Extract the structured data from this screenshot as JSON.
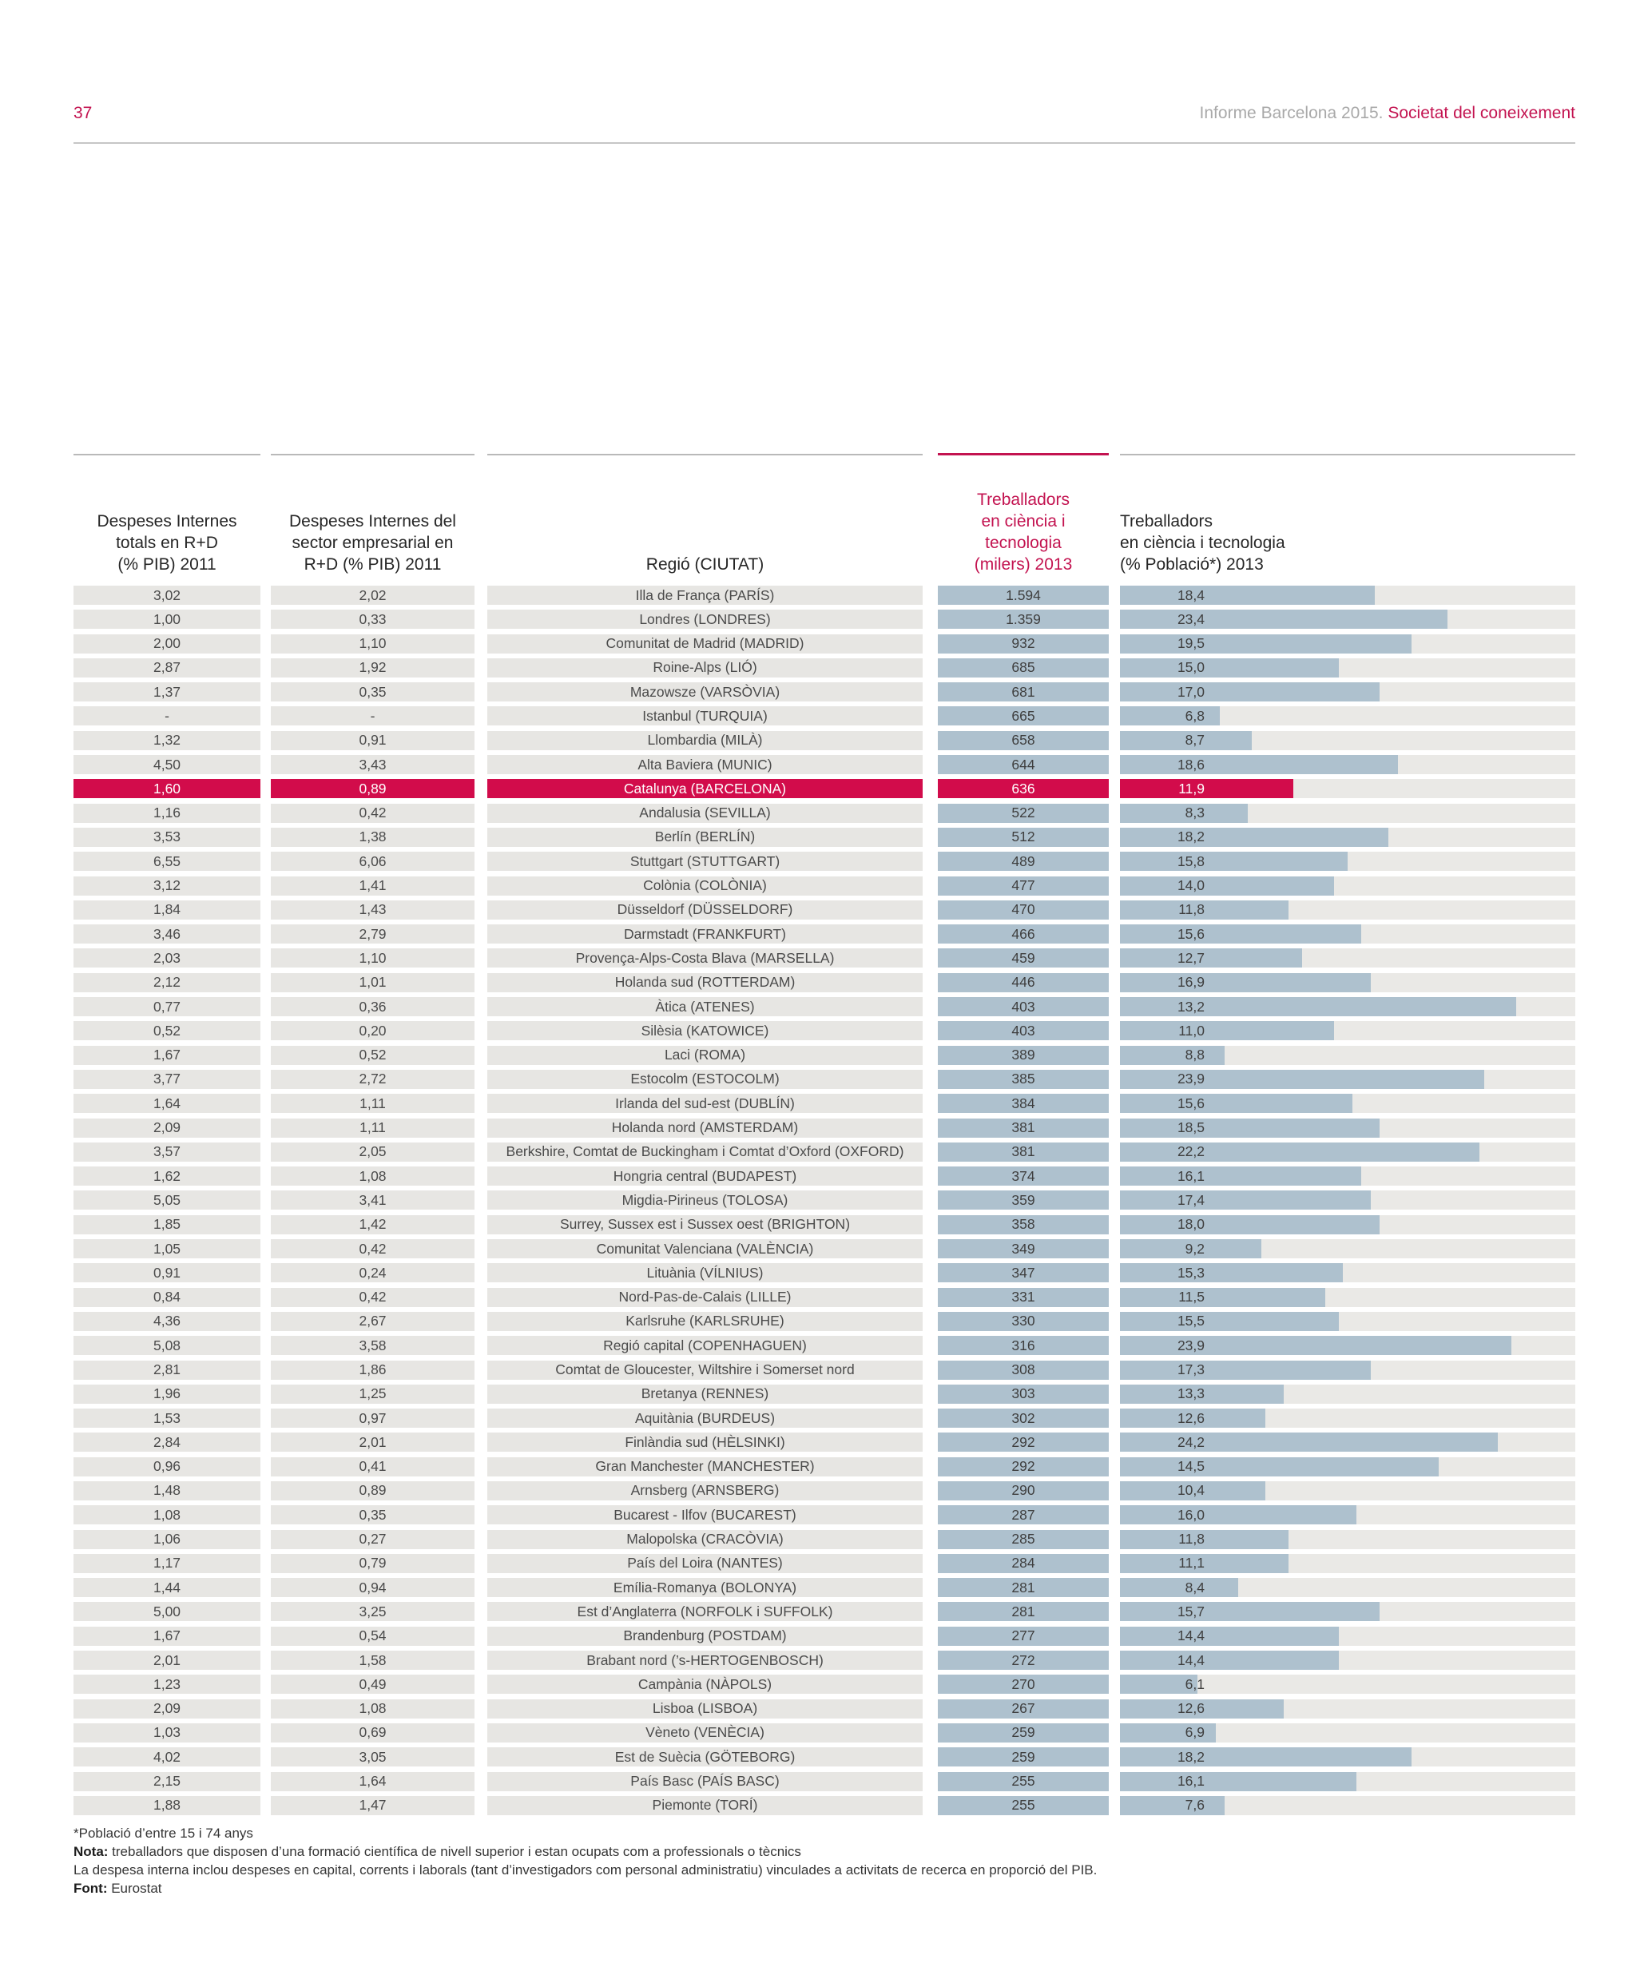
{
  "page_header": {
    "page_number": "37",
    "report_title": "Informe Barcelona 2015. ",
    "section_title": "Societat del coneixement"
  },
  "colors": {
    "accent": "#c31350",
    "highlight_row": "#d20c4b",
    "bar_blue": "#aec1ce",
    "row_bg": "#e7e6e3",
    "track_bg": "#eae9e6",
    "rule_gray": "#b9b9b9"
  },
  "chart_data": {
    "type": "table",
    "note": "Table with embedded horizontal bars; bar_pct is the drawn bar length as % of the track in the source figure; highlighted row = Catalunya (BARCELONA)",
    "columns": [
      {
        "id": "despeses_totals",
        "label_lines": [
          "Despeses Internes",
          "totals en R+D",
          "(% PIB) 2011"
        ],
        "accent": false
      },
      {
        "id": "despeses_empresarials",
        "label_lines": [
          "Despeses Internes del",
          "sector empresarial en",
          "R+D (% PIB) 2011"
        ],
        "accent": false
      },
      {
        "id": "regio",
        "label_lines": [
          "Regió (CIUTAT)"
        ],
        "accent": false
      },
      {
        "id": "treballadors_milers",
        "label_lines": [
          "Treballadors",
          "en ciència i",
          "tecnologia",
          "(milers) 2013"
        ],
        "accent": true
      },
      {
        "id": "treballadors_pct",
        "label_lines": [
          "Treballadors",
          "en ciència i tecnologia",
          "(% Població*) 2013"
        ],
        "accent": false
      }
    ],
    "rows": [
      {
        "total": "3,02",
        "emp": "2,02",
        "regio": "Illa de França (PARÍS)",
        "milers": "1.594",
        "pct": "18,4",
        "bar": 56,
        "hl": false
      },
      {
        "total": "1,00",
        "emp": "0,33",
        "regio": "Londres (LONDRES)",
        "milers": "1.359",
        "pct": "23,4",
        "bar": 72,
        "hl": false
      },
      {
        "total": "2,00",
        "emp": "1,10",
        "regio": "Comunitat de Madrid (MADRID)",
        "milers": "932",
        "pct": "19,5",
        "bar": 64,
        "hl": false
      },
      {
        "total": "2,87",
        "emp": "1,92",
        "regio": "Roine-Alps (LIÓ)",
        "milers": "685",
        "pct": "15,0",
        "bar": 48,
        "hl": false
      },
      {
        "total": "1,37",
        "emp": "0,35",
        "regio": "Mazowsze (VARSÒVIA)",
        "milers": "681",
        "pct": "17,0",
        "bar": 57,
        "hl": false
      },
      {
        "total": "-",
        "emp": "-",
        "regio": "Istanbul (TURQUIA)",
        "milers": "665",
        "pct": "6,8",
        "bar": 22,
        "hl": false
      },
      {
        "total": "1,32",
        "emp": "0,91",
        "regio": "Llombardia (MILÀ)",
        "milers": "658",
        "pct": "8,7",
        "bar": 29,
        "hl": false
      },
      {
        "total": "4,50",
        "emp": "3,43",
        "regio": "Alta Baviera (MUNIC)",
        "milers": "644",
        "pct": "18,6",
        "bar": 61,
        "hl": false
      },
      {
        "total": "1,60",
        "emp": "0,89",
        "regio": "Catalunya (BARCELONA)",
        "milers": "636",
        "pct": "11,9",
        "bar": 38,
        "hl": true
      },
      {
        "total": "1,16",
        "emp": "0,42",
        "regio": "Andalusia (SEVILLA)",
        "milers": "522",
        "pct": "8,3",
        "bar": 28,
        "hl": false
      },
      {
        "total": "3,53",
        "emp": "1,38",
        "regio": "Berlín (BERLÍN)",
        "milers": "512",
        "pct": "18,2",
        "bar": 59,
        "hl": false
      },
      {
        "total": "6,55",
        "emp": "6,06",
        "regio": "Stuttgart (STUTTGART)",
        "milers": "489",
        "pct": "15,8",
        "bar": 50,
        "hl": false
      },
      {
        "total": "3,12",
        "emp": "1,41",
        "regio": "Colònia (COLÒNIA)",
        "milers": "477",
        "pct": "14,0",
        "bar": 47,
        "hl": false
      },
      {
        "total": "1,84",
        "emp": "1,43",
        "regio": "Düsseldorf (DÜSSELDORF)",
        "milers": "470",
        "pct": "11,8",
        "bar": 37,
        "hl": false
      },
      {
        "total": "3,46",
        "emp": "2,79",
        "regio": "Darmstadt (FRANKFURT)",
        "milers": "466",
        "pct": "15,6",
        "bar": 53,
        "hl": false
      },
      {
        "total": "2,03",
        "emp": "1,10",
        "regio": "Provença-Alps-Costa Blava (MARSELLA)",
        "milers": "459",
        "pct": "12,7",
        "bar": 40,
        "hl": false
      },
      {
        "total": "2,12",
        "emp": "1,01",
        "regio": "Holanda sud (ROTTERDAM)",
        "milers": "446",
        "pct": "16,9",
        "bar": 55,
        "hl": false
      },
      {
        "total": "0,77",
        "emp": "0,36",
        "regio": "Àtica (ATENES)",
        "milers": "403",
        "pct": "13,2",
        "bar": 87,
        "hl": false
      },
      {
        "total": "0,52",
        "emp": "0,20",
        "regio": "Silèsia (KATOWICE)",
        "milers": "403",
        "pct": "11,0",
        "bar": 47,
        "hl": false
      },
      {
        "total": "1,67",
        "emp": "0,52",
        "regio": "Laci (ROMA)",
        "milers": "389",
        "pct": "8,8",
        "bar": 23,
        "hl": false
      },
      {
        "total": "3,77",
        "emp": "2,72",
        "regio": "Estocolm (ESTOCOLM)",
        "milers": "385",
        "pct": "23,9",
        "bar": 80,
        "hl": false
      },
      {
        "total": "1,64",
        "emp": "1,11",
        "regio": "Irlanda del sud-est (DUBLÍN)",
        "milers": "384",
        "pct": "15,6",
        "bar": 51,
        "hl": false
      },
      {
        "total": "2,09",
        "emp": "1,11",
        "regio": "Holanda nord (AMSTERDAM)",
        "milers": "381",
        "pct": "18,5",
        "bar": 57,
        "hl": false
      },
      {
        "total": "3,57",
        "emp": "2,05",
        "regio": "Berkshire, Comtat de Buckingham i Comtat d’Oxford (OXFORD)",
        "milers": "381",
        "pct": "22,2",
        "bar": 79,
        "hl": false
      },
      {
        "total": "1,62",
        "emp": "1,08",
        "regio": "Hongria central (BUDAPEST)",
        "milers": "374",
        "pct": "16,1",
        "bar": 53,
        "hl": false
      },
      {
        "total": "5,05",
        "emp": "3,41",
        "regio": "Migdia-Pirineus (TOLOSA)",
        "milers": "359",
        "pct": "17,4",
        "bar": 55,
        "hl": false
      },
      {
        "total": "1,85",
        "emp": "1,42",
        "regio": "Surrey, Sussex est i Sussex oest (BRIGHTON)",
        "milers": "358",
        "pct": "18,0",
        "bar": 57,
        "hl": false
      },
      {
        "total": "1,05",
        "emp": "0,42",
        "regio": "Comunitat Valenciana (VALÈNCIA)",
        "milers": "349",
        "pct": "9,2",
        "bar": 31,
        "hl": false
      },
      {
        "total": "0,91",
        "emp": "0,24",
        "regio": "Lituània (VÍLNIUS)",
        "milers": "347",
        "pct": "15,3",
        "bar": 49,
        "hl": false
      },
      {
        "total": "0,84",
        "emp": "0,42",
        "regio": "Nord-Pas-de-Calais (LILLE)",
        "milers": "331",
        "pct": "11,5",
        "bar": 45,
        "hl": false
      },
      {
        "total": "4,36",
        "emp": "2,67",
        "regio": "Karlsruhe (KARLSRUHE)",
        "milers": "330",
        "pct": "15,5",
        "bar": 48,
        "hl": false
      },
      {
        "total": "5,08",
        "emp": "3,58",
        "regio": "Regió capital (COPENHAGUEN)",
        "milers": "316",
        "pct": "23,9",
        "bar": 86,
        "hl": false
      },
      {
        "total": "2,81",
        "emp": "1,86",
        "regio": "Comtat de Gloucester, Wiltshire i Somerset nord",
        "milers": "308",
        "pct": "17,3",
        "bar": 55,
        "hl": false
      },
      {
        "total": "1,96",
        "emp": "1,25",
        "regio": "Bretanya (RENNES)",
        "milers": "303",
        "pct": "13,3",
        "bar": 36,
        "hl": false
      },
      {
        "total": "1,53",
        "emp": "0,97",
        "regio": "Aquitània (BURDEUS)",
        "milers": "302",
        "pct": "12,6",
        "bar": 32,
        "hl": false
      },
      {
        "total": "2,84",
        "emp": "2,01",
        "regio": "Finlàndia sud (HÈLSINKI)",
        "milers": "292",
        "pct": "24,2",
        "bar": 83,
        "hl": false
      },
      {
        "total": "0,96",
        "emp": "0,41",
        "regio": "Gran Manchester (MANCHESTER)",
        "milers": "292",
        "pct": "14,5",
        "bar": 70,
        "hl": false
      },
      {
        "total": "1,48",
        "emp": "0,89",
        "regio": "Arnsberg (ARNSBERG)",
        "milers": "290",
        "pct": "10,4",
        "bar": 32,
        "hl": false
      },
      {
        "total": "1,08",
        "emp": "0,35",
        "regio": "Bucarest - Ilfov (BUCAREST)",
        "milers": "287",
        "pct": "16,0",
        "bar": 52,
        "hl": false
      },
      {
        "total": "1,06",
        "emp": "0,27",
        "regio": "Malopolska (CRACÒVIA)",
        "milers": "285",
        "pct": "11,8",
        "bar": 37,
        "hl": false
      },
      {
        "total": "1,17",
        "emp": "0,79",
        "regio": "País del Loira (NANTES)",
        "milers": "284",
        "pct": "11,1",
        "bar": 37,
        "hl": false
      },
      {
        "total": "1,44",
        "emp": "0,94",
        "regio": "Emília-Romanya (BOLONYA)",
        "milers": "281",
        "pct": "8,4",
        "bar": 26,
        "hl": false
      },
      {
        "total": "5,00",
        "emp": "3,25",
        "regio": "Est d’Anglaterra (NORFOLK i SUFFOLK)",
        "milers": "281",
        "pct": "15,7",
        "bar": 57,
        "hl": false
      },
      {
        "total": "1,67",
        "emp": "0,54",
        "regio": "Brandenburg (POSTDAM)",
        "milers": "277",
        "pct": "14,4",
        "bar": 48,
        "hl": false
      },
      {
        "total": "2,01",
        "emp": "1,58",
        "regio": "Brabant nord (’s-HERTOGENBOSCH)",
        "milers": "272",
        "pct": "14,4",
        "bar": 48,
        "hl": false
      },
      {
        "total": "1,23",
        "emp": "0,49",
        "regio": "Campània (NÀPOLS)",
        "milers": "270",
        "pct": "6,1",
        "bar": 17,
        "hl": false
      },
      {
        "total": "2,09",
        "emp": "1,08",
        "regio": "Lisboa (LISBOA)",
        "milers": "267",
        "pct": "12,6",
        "bar": 36,
        "hl": false
      },
      {
        "total": "1,03",
        "emp": "0,69",
        "regio": "Vèneto (VENÈCIA)",
        "milers": "259",
        "pct": "6,9",
        "bar": 21,
        "hl": false
      },
      {
        "total": "4,02",
        "emp": "3,05",
        "regio": "Est de Suècia (GÖTEBORG)",
        "milers": "259",
        "pct": "18,2",
        "bar": 64,
        "hl": false
      },
      {
        "total": "2,15",
        "emp": "1,64",
        "regio": "País Basc (PAÍS BASC)",
        "milers": "255",
        "pct": "16,1",
        "bar": 52,
        "hl": false
      },
      {
        "total": "1,88",
        "emp": "1,47",
        "regio": "Piemonte (TORÍ)",
        "milers": "255",
        "pct": "7,6",
        "bar": 23,
        "hl": false
      }
    ]
  },
  "footnotes": [
    {
      "bold": "",
      "text": "*Població d’entre 15 i 74 anys"
    },
    {
      "bold": "Nota:",
      "text": " treballadors que disposen d’una formació científica de nivell superior i estan ocupats com a professionals o tècnics"
    },
    {
      "bold": "",
      "text": "La despesa interna inclou despeses en capital, corrents i laborals (tant d’investigadors com personal administratiu) vinculades a activitats de recerca en proporció del PIB."
    },
    {
      "bold": "Font:",
      "text": " Eurostat"
    }
  ]
}
